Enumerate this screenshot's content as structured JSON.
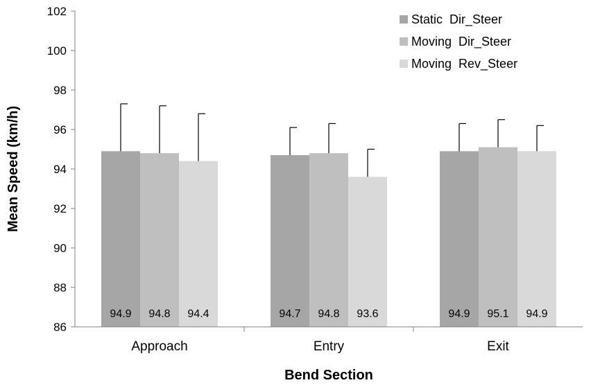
{
  "chart_data": {
    "type": "bar",
    "categories": [
      "Approach",
      "Entry",
      "Exit"
    ],
    "series": [
      {
        "name": "Static  Dir_Steer",
        "color": "#a6a6a6",
        "values": [
          94.9,
          94.7,
          94.9
        ],
        "error": [
          2.4,
          1.4,
          1.4
        ]
      },
      {
        "name": "Moving  Dir_Steer",
        "color": "#bfbfbf",
        "values": [
          94.8,
          94.8,
          95.1
        ],
        "error": [
          2.4,
          1.5,
          1.4
        ]
      },
      {
        "name": "Moving  Rev_Steer",
        "color": "#d9d9d9",
        "values": [
          94.4,
          93.6,
          94.9
        ],
        "error": [
          2.4,
          1.4,
          1.3
        ]
      }
    ],
    "xlabel": "Bend Section",
    "ylabel": "Mean Speed (km/h)",
    "ylim": [
      86,
      102
    ],
    "yticks": [
      "86",
      "88",
      "90",
      "92",
      "94",
      "96",
      "98",
      "100",
      "102"
    ],
    "data_labels": [
      [
        "94.9",
        "94.7",
        "94.9"
      ],
      [
        "94.8",
        "94.8",
        "95.1"
      ],
      [
        "94.4",
        "93.6",
        "94.9"
      ]
    ],
    "grid": false,
    "legend_position": "top-right"
  }
}
